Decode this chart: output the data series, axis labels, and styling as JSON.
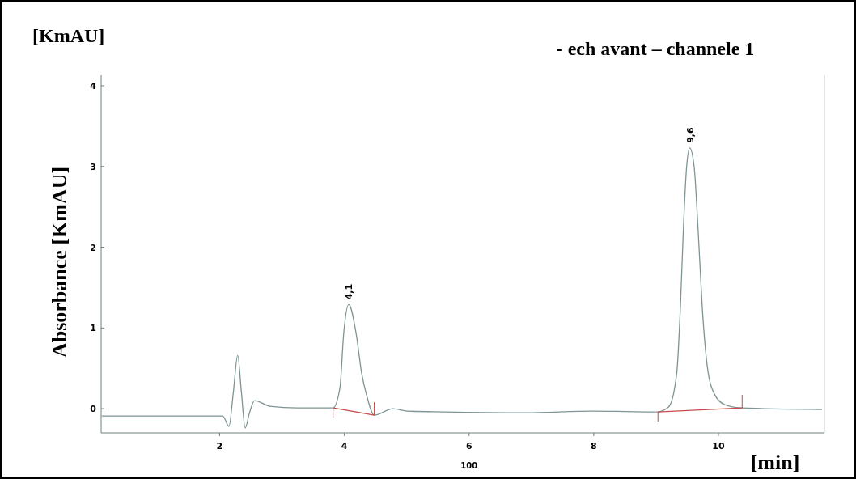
{
  "chart_data": {
    "type": "line",
    "title": "- ech avant – channele 1",
    "xlabel": "[min]",
    "ylabel": "Absorbance [KmAU]",
    "annotations": [
      "[KmAU]",
      "100",
      {
        "text": "4,1",
        "x": 4.07,
        "y": 1.29
      },
      {
        "text": "9,6",
        "x": 9.54,
        "y": 3.23
      }
    ],
    "series": [
      {
        "color": "#7f9494",
        "x": [
          0.11,
          2.05,
          2.15,
          2.22,
          2.29,
          2.35,
          2.41,
          2.48,
          2.56,
          2.81,
          3.24,
          3.82,
          3.93,
          3.99,
          4.07,
          4.19,
          4.28,
          4.36,
          4.48,
          4.78,
          5.01,
          5.61,
          6.91,
          7.99,
          9.02,
          9.2,
          9.33,
          9.39,
          9.44,
          9.49,
          9.54,
          9.61,
          9.67,
          9.74,
          9.82,
          9.93,
          10.1,
          10.36,
          11.66
        ],
        "values": [
          -0.09,
          -0.09,
          -0.22,
          0.2,
          0.66,
          0.2,
          -0.24,
          -0.05,
          0.1,
          0.03,
          0.01,
          0.01,
          0.26,
          0.93,
          1.29,
          0.93,
          0.43,
          0.16,
          -0.08,
          0.0,
          -0.03,
          -0.04,
          -0.05,
          -0.03,
          -0.04,
          0.02,
          0.43,
          1.26,
          2.27,
          3.0,
          3.23,
          3.0,
          2.27,
          1.26,
          0.53,
          0.19,
          0.05,
          0.01,
          -0.01
        ]
      },
      {
        "color": "#c84b4b",
        "x": [
          3.82,
          4.48,
          null,
          9.03,
          10.38
        ],
        "values": [
          0.01,
          -0.08,
          null,
          -0.04,
          0.01
        ]
      }
    ],
    "xlim": [
      0.1,
      11.7
    ],
    "ylim": [
      -0.3,
      4.13
    ],
    "xticks": [
      2,
      4,
      6,
      8,
      10
    ],
    "yticks": [
      0,
      1,
      2,
      3,
      4
    ],
    "grid": false,
    "marker": "none",
    "line_style": "solid"
  }
}
